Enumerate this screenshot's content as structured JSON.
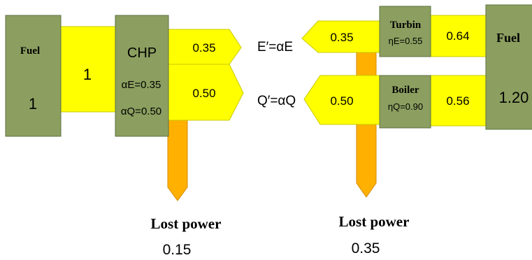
{
  "colors": {
    "box_fill": "#8c9f60",
    "box_stroke": "#5d7040",
    "flow_fill": "#ffff00",
    "flow_stroke": "#c8c800",
    "loss_fill": "#ffb000",
    "loss_stroke": "#d08a00",
    "text": "#000000"
  },
  "left_system": {
    "fuel": {
      "label": "Fuel",
      "value": "1"
    },
    "fuel_flow_value": "1",
    "chp": {
      "label": "CHP",
      "alpha_e": "αE=0.35",
      "alpha_q": "αQ=0.50"
    },
    "electric_out": "0.35",
    "heat_out": "0.50",
    "lost": {
      "label": "Lost power",
      "value": "0.15"
    }
  },
  "center_labels": {
    "e_label": "E′=αE",
    "q_label": "Q′=αQ"
  },
  "right_system": {
    "electric_in": "0.35",
    "heat_in": "0.50",
    "turbine": {
      "label": "Turbin",
      "eff": "ηE=0.55"
    },
    "boiler": {
      "label": "Boiler",
      "eff": "ηQ=0.90"
    },
    "turbine_fuel_flow": "0.64",
    "boiler_fuel_flow": "0.56",
    "fuel": {
      "label": "Fuel",
      "value": "1.20"
    },
    "lost": {
      "label": "Lost power",
      "value": "0.35"
    }
  }
}
